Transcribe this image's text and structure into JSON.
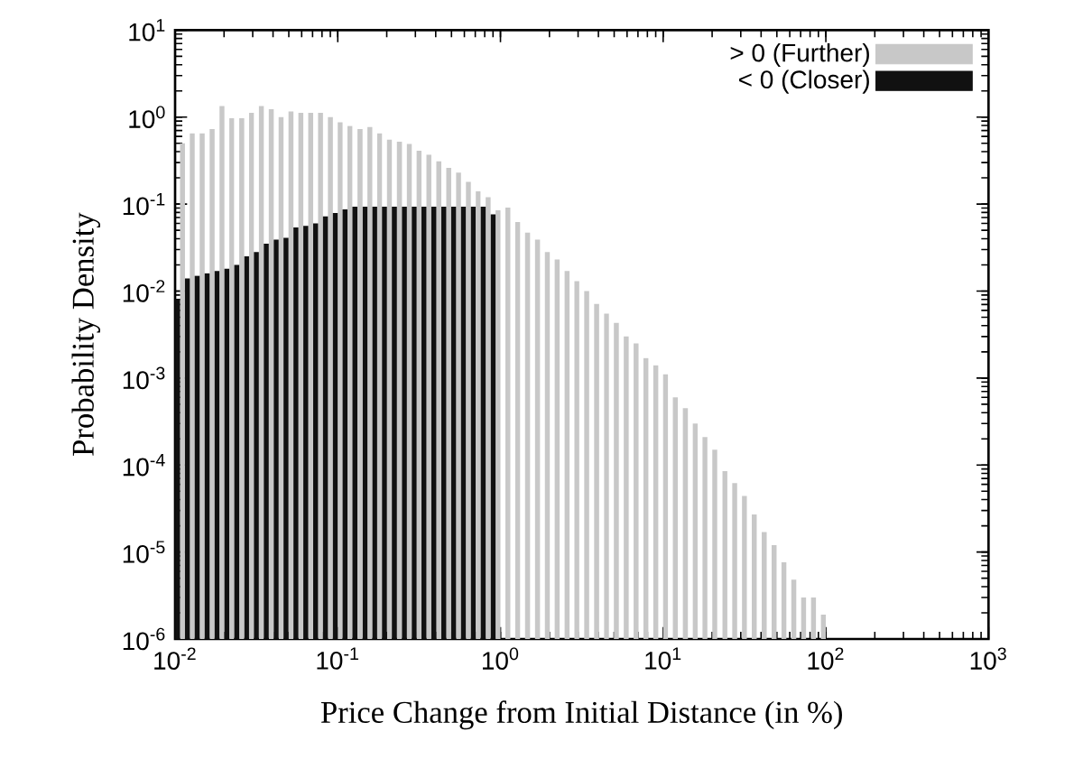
{
  "chart_data": {
    "type": "histogram",
    "xlabel": "Price Change from Initial Distance (in %)",
    "ylabel": "Probability Density",
    "bins": [
      0.01,
      0.0115,
      0.0132,
      0.0152,
      0.0175,
      0.0201,
      0.0231,
      0.0266,
      0.0305,
      0.0351,
      0.0404,
      0.0464,
      0.0534,
      0.0614,
      0.0706,
      0.0811,
      0.0933,
      0.107,
      0.123,
      0.142,
      0.163,
      0.187,
      0.215,
      0.248,
      0.285,
      0.327,
      0.376,
      0.433,
      0.498,
      0.572,
      0.658,
      0.756,
      0.87,
      1,
      1.15,
      1.32,
      1.52,
      1.75,
      2.01,
      2.31,
      2.66,
      3.05,
      3.51,
      4.04,
      4.64,
      5.34,
      6.14,
      7.06,
      8.11,
      9.33,
      10.7,
      12.3,
      14.2,
      16.3,
      18.7,
      21.5,
      24.8,
      28.5,
      32.7,
      37.6,
      43.3,
      49.8,
      57.2,
      65.8,
      75.6,
      87.0,
      100
    ],
    "series": [
      {
        "name": "> 0 (Further)",
        "color": "#c8c8c8",
        "values": [
          0.5,
          0.65,
          0.65,
          0.73,
          1.34,
          0.97,
          0.97,
          1.12,
          1.34,
          1.23,
          1.0,
          1.16,
          1.12,
          1.12,
          1.12,
          1.0,
          0.87,
          0.79,
          0.73,
          0.77,
          0.65,
          0.55,
          0.52,
          0.49,
          0.41,
          0.37,
          0.31,
          0.26,
          0.23,
          0.18,
          0.14,
          0.12,
          0.085,
          0.091,
          0.062,
          0.047,
          0.039,
          0.028,
          0.023,
          0.017,
          0.013,
          0.01,
          0.0071,
          0.0055,
          0.0043,
          0.003,
          0.0025,
          0.0017,
          0.0014,
          0.0011,
          0.0006,
          0.00045,
          0.0003,
          0.00021,
          0.00015,
          8.5e-05,
          6.2e-05,
          4.4e-05,
          2.7e-05,
          1.7e-05,
          1.2e-05,
          7.6e-06,
          4.8e-06,
          3e-06,
          3e-06,
          1.9e-06
        ]
      },
      {
        "name": "< 0 (Closer)",
        "color": "#111111",
        "values": [
          0.0081,
          0.014,
          0.015,
          0.016,
          0.017,
          0.018,
          0.02,
          0.025,
          0.028,
          0.035,
          0.039,
          0.041,
          0.054,
          0.056,
          0.06,
          0.072,
          0.079,
          0.087,
          0.093,
          0.093,
          0.093,
          0.093,
          0.093,
          0.093,
          0.093,
          0.093,
          0.093,
          0.093,
          0.093,
          0.093,
          0.093,
          0.093,
          0.076,
          null,
          null,
          null,
          null,
          null,
          null,
          null,
          null,
          null,
          null,
          null,
          null,
          null,
          null,
          null,
          null,
          null,
          null,
          null,
          null,
          null,
          null,
          null,
          null,
          null,
          null,
          null,
          null,
          null,
          null,
          null,
          null,
          null
        ]
      }
    ],
    "log": "xy",
    "xlim": [
      0.01,
      1000
    ],
    "ylim": [
      1e-06,
      10
    ],
    "xticks": [
      {
        "value": 0.01,
        "label": "10$^{-2}$"
      },
      {
        "value": 0.1,
        "label": "10$^{-1}$"
      },
      {
        "value": 1,
        "label": "10$^{0}$"
      },
      {
        "value": 10,
        "label": "10$^{1}$"
      },
      {
        "value": 100,
        "label": "10$^{2}$"
      },
      {
        "value": 1000,
        "label": "10$^{3}$"
      }
    ],
    "yticks": [
      {
        "value": 1e-06,
        "label": "10$^{-6}$"
      },
      {
        "value": 1e-05,
        "label": "10$^{-5}$"
      },
      {
        "value": 0.0001,
        "label": "10$^{-4}$"
      },
      {
        "value": 0.001,
        "label": "10$^{-3}$"
      },
      {
        "value": 0.01,
        "label": "10$^{-2}$"
      },
      {
        "value": 0.1,
        "label": "10$^{-1}$"
      },
      {
        "value": 1,
        "label": "10$^{0}$"
      },
      {
        "value": 10,
        "label": "10$^{1}$"
      }
    ],
    "legend": "top right"
  }
}
